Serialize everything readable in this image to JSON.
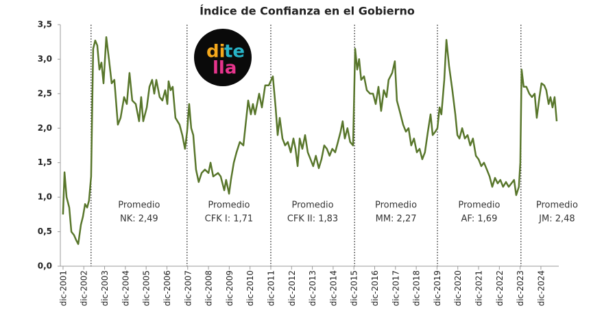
{
  "chart_data": {
    "type": "line",
    "title": "Índice de Confianza en el Gobierno",
    "x": [
      2001.92,
      2001.99,
      2002.09,
      2002.22,
      2002.32,
      2002.45,
      2002.55,
      2002.65,
      2002.78,
      2002.88,
      2002.98,
      2003.08,
      2003.17,
      2003.27,
      2003.37,
      2003.47,
      2003.57,
      2003.67,
      2003.77,
      2003.87,
      2004.0,
      2004.13,
      2004.26,
      2004.39,
      2004.56,
      2004.69,
      2004.86,
      2004.99,
      2005.12,
      2005.25,
      2005.42,
      2005.58,
      2005.68,
      2005.78,
      2005.95,
      2006.08,
      2006.21,
      2006.31,
      2006.41,
      2006.57,
      2006.7,
      2006.84,
      2006.94,
      2007.0,
      2007.1,
      2007.2,
      2007.33,
      2007.53,
      2007.66,
      2007.79,
      2007.89,
      2007.99,
      2008.09,
      2008.19,
      2008.32,
      2008.45,
      2008.59,
      2008.75,
      2008.92,
      2009.02,
      2009.15,
      2009.38,
      2009.51,
      2009.68,
      2009.77,
      2009.91,
      2010.0,
      2010.14,
      2010.27,
      2010.43,
      2010.6,
      2010.83,
      2010.96,
      2011.06,
      2011.16,
      2011.36,
      2011.49,
      2011.65,
      2011.82,
      2012.02,
      2012.15,
      2012.25,
      2012.35,
      2012.48,
      2012.61,
      2012.74,
      2012.88,
      2013.01,
      2013.11,
      2013.21,
      2013.31,
      2013.44,
      2013.57,
      2013.7,
      2013.83,
      2013.96,
      2014.09,
      2014.23,
      2014.36,
      2014.49,
      2014.62,
      2014.75,
      2014.88,
      2015.02,
      2015.15,
      2015.28,
      2015.38,
      2015.48,
      2015.61,
      2015.74,
      2015.88,
      2015.98,
      2016.08,
      2016.17,
      2016.27,
      2016.41,
      2016.54,
      2016.7,
      2016.84,
      2016.97,
      2017.1,
      2017.23,
      2017.36,
      2017.49,
      2017.59,
      2017.76,
      2017.89,
      2017.99,
      2018.12,
      2018.29,
      2018.42,
      2018.55,
      2018.68,
      2018.81,
      2018.95,
      2019.08,
      2019.21,
      2019.34,
      2019.48,
      2019.61,
      2019.71,
      2019.84,
      2019.94,
      2020.04,
      2020.13,
      2020.27,
      2020.37,
      2020.5,
      2020.66,
      2020.8,
      2020.9,
      2021.0,
      2021.13,
      2021.26,
      2021.39,
      2021.52,
      2021.65,
      2021.79,
      2021.92,
      2022.05,
      2022.18,
      2022.32,
      2022.45,
      2022.58,
      2022.71,
      2022.84,
      2022.97,
      2023.1,
      2023.24,
      2023.37,
      2023.5,
      2023.63,
      2023.73,
      2023.86,
      2023.93,
      2023.99,
      2024.09,
      2024.22,
      2024.36,
      2024.49,
      2024.62,
      2024.72,
      2024.85,
      2024.95,
      2025.08,
      2025.18,
      2025.29,
      2025.38,
      2025.48,
      2025.58,
      2025.68
    ],
    "series": [
      {
        "color": "#58762b",
        "values": [
          0.75,
          1.36,
          1.0,
          0.85,
          0.5,
          0.45,
          0.38,
          0.32,
          0.6,
          0.72,
          0.9,
          0.85,
          0.95,
          1.3,
          3.15,
          3.27,
          3.2,
          2.85,
          2.95,
          2.65,
          3.32,
          3.0,
          2.65,
          2.7,
          2.05,
          2.15,
          2.45,
          2.35,
          2.8,
          2.4,
          2.35,
          2.1,
          2.45,
          2.1,
          2.3,
          2.6,
          2.7,
          2.5,
          2.7,
          2.45,
          2.4,
          2.55,
          2.35,
          2.68,
          2.55,
          2.6,
          2.15,
          2.05,
          1.9,
          1.7,
          1.95,
          2.35,
          2.0,
          1.9,
          1.4,
          1.22,
          1.35,
          1.4,
          1.35,
          1.5,
          1.3,
          1.35,
          1.3,
          1.1,
          1.25,
          1.05,
          1.25,
          1.5,
          1.65,
          1.8,
          1.75,
          2.4,
          2.2,
          2.35,
          2.2,
          2.5,
          2.3,
          2.62,
          2.62,
          2.75,
          2.3,
          1.9,
          2.15,
          1.85,
          1.75,
          1.8,
          1.65,
          1.85,
          1.7,
          1.45,
          1.85,
          1.7,
          1.9,
          1.65,
          1.55,
          1.45,
          1.6,
          1.42,
          1.55,
          1.75,
          1.7,
          1.6,
          1.7,
          1.65,
          1.8,
          1.95,
          2.1,
          1.85,
          2.0,
          1.8,
          1.75,
          3.15,
          2.85,
          3.0,
          2.7,
          2.75,
          2.55,
          2.5,
          2.5,
          2.35,
          2.6,
          2.25,
          2.55,
          2.45,
          2.7,
          2.8,
          2.97,
          2.4,
          2.25,
          2.05,
          1.95,
          2.0,
          1.75,
          1.85,
          1.65,
          1.7,
          1.55,
          1.65,
          1.95,
          2.2,
          1.9,
          1.95,
          2.0,
          2.3,
          2.2,
          2.7,
          3.28,
          2.9,
          2.55,
          2.2,
          1.9,
          1.85,
          2.0,
          1.85,
          1.9,
          1.75,
          1.85,
          1.6,
          1.55,
          1.45,
          1.5,
          1.4,
          1.3,
          1.15,
          1.28,
          1.2,
          1.25,
          1.15,
          1.22,
          1.15,
          1.2,
          1.25,
          1.03,
          1.15,
          1.5,
          2.85,
          2.6,
          2.6,
          2.5,
          2.45,
          2.5,
          2.15,
          2.45,
          2.65,
          2.62,
          2.55,
          2.35,
          2.45,
          2.3,
          2.45,
          2.1
        ]
      }
    ],
    "xlim": [
      2001.79,
      2025.78
    ],
    "xticks": [
      {
        "value": 2001.92,
        "label": "dic-2001"
      },
      {
        "value": 2002.92,
        "label": "dic-2002"
      },
      {
        "value": 2003.92,
        "label": "dic-2003"
      },
      {
        "value": 2004.92,
        "label": "dic-2004"
      },
      {
        "value": 2005.92,
        "label": "dic-2005"
      },
      {
        "value": 2006.92,
        "label": "dic-2006"
      },
      {
        "value": 2007.92,
        "label": "dic-2007"
      },
      {
        "value": 2008.92,
        "label": "dic-2008"
      },
      {
        "value": 2009.92,
        "label": "dic-2009"
      },
      {
        "value": 2010.92,
        "label": "dic-2010"
      },
      {
        "value": 2011.92,
        "label": "dic-2011"
      },
      {
        "value": 2012.92,
        "label": "dic-2012"
      },
      {
        "value": 2013.92,
        "label": "dic-2013"
      },
      {
        "value": 2014.92,
        "label": "dic-2014"
      },
      {
        "value": 2015.92,
        "label": "dic-2015"
      },
      {
        "value": 2016.92,
        "label": "dic-2016"
      },
      {
        "value": 2017.92,
        "label": "dic-2017"
      },
      {
        "value": 2018.92,
        "label": "dic-2018"
      },
      {
        "value": 2019.92,
        "label": "dic-2019"
      },
      {
        "value": 2020.92,
        "label": "dic-2020"
      },
      {
        "value": 2021.92,
        "label": "dic-2021"
      },
      {
        "value": 2022.92,
        "label": "dic-2022"
      },
      {
        "value": 2023.92,
        "label": "dic-2023"
      },
      {
        "value": 2024.92,
        "label": "dic-2024"
      }
    ],
    "ylim": [
      0,
      3.5
    ],
    "yticks": [
      {
        "value": 0,
        "label": "0,0"
      },
      {
        "value": 0.5,
        "label": "0,5"
      },
      {
        "value": 1,
        "label": "1,0"
      },
      {
        "value": 1.5,
        "label": "1,5"
      },
      {
        "value": 2,
        "label": "2,0"
      },
      {
        "value": 2.5,
        "label": "2,5"
      },
      {
        "value": 3,
        "label": "3,0"
      },
      {
        "value": 3.5,
        "label": "3,5"
      }
    ],
    "dividers": [
      2003.27,
      2007.89,
      2011.92,
      2015.95,
      2019.94,
      2023.96
    ],
    "annotations": [
      [
        "Promedio",
        "NK: 2,49"
      ],
      [
        "Promedio",
        "CFK I: 1,71"
      ],
      [
        "Promedio",
        "CFK II: 1,83"
      ],
      [
        "Promedio",
        "MM: 2,27"
      ],
      [
        "Promedio",
        "AF: 1,69"
      ],
      [
        "Promedio",
        "JM: 2,48"
      ]
    ],
    "logo": [
      "di",
      "te",
      "lla"
    ]
  }
}
